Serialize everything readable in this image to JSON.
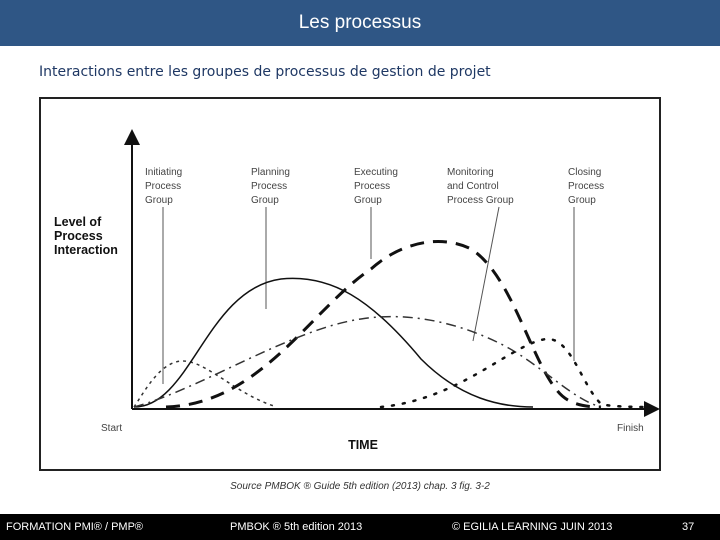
{
  "header": {
    "title": "Les processus"
  },
  "subtitle": "Interactions entre les groupes de processus de gestion de projet",
  "diagram": {
    "y_axis_label": [
      "Level of",
      "Process",
      "Interaction"
    ],
    "x_axis_label": "TIME",
    "start_label": "Start",
    "finish_label": "Finish",
    "groups": [
      {
        "lines": [
          "Initiating",
          "Process",
          "Group"
        ]
      },
      {
        "lines": [
          "Planning",
          "Process",
          "Group"
        ]
      },
      {
        "lines": [
          "Executing",
          "Process",
          "Group"
        ]
      },
      {
        "lines": [
          "Monitoring",
          "and Control",
          "Process Group"
        ]
      },
      {
        "lines": [
          "Closing",
          "Process",
          "Group"
        ]
      }
    ]
  },
  "source": "Source  PMBOK ® Guide 5th edition  (2013)  chap. 3  fig. 3-2",
  "footer": {
    "left": "FORMATION PMI® / PMP®",
    "center": "PMBOK ® 5th edition  2013",
    "right": "©  EGILIA LEARNING  JUIN 2013",
    "page": "37"
  }
}
